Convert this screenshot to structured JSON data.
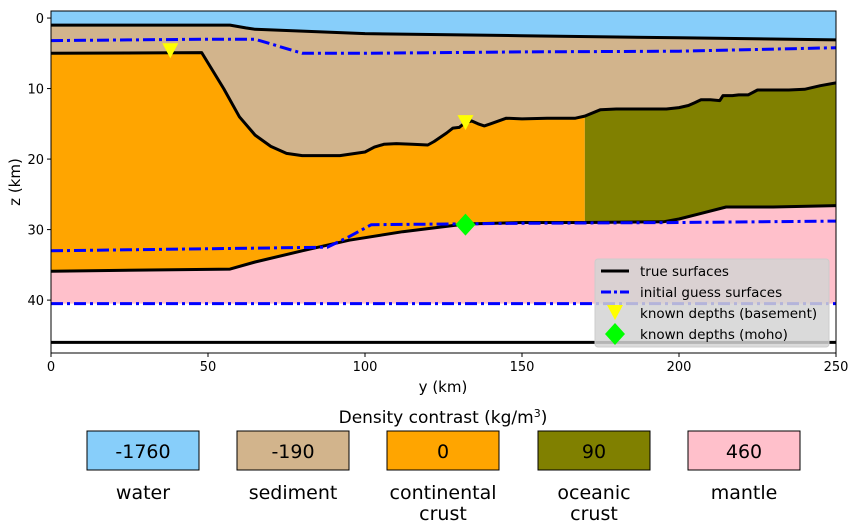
{
  "chart_data": {
    "type": "area",
    "xlabel": "y (km)",
    "ylabel": "z (km)",
    "xlim": [
      0,
      250
    ],
    "ylim": [
      47.5,
      -1
    ],
    "y_inverted": true,
    "x_ticks": [
      0,
      50,
      100,
      150,
      200,
      250
    ],
    "y_ticks": [
      0,
      10,
      20,
      30,
      40
    ],
    "grid": false,
    "legend_position": "lower-right",
    "layers": [
      {
        "name": "water",
        "density_contrast": -1760,
        "color": "#87CEFA"
      },
      {
        "name": "sediment",
        "density_contrast": -190,
        "color": "#D2B48C"
      },
      {
        "name": "continental crust",
        "density_contrast": 0,
        "color": "#FFA500"
      },
      {
        "name": "oceanic crust",
        "density_contrast": 90,
        "color": "#808000"
      },
      {
        "name": "mantle",
        "density_contrast": 460,
        "color": "#FFC0CB"
      }
    ],
    "true_surfaces": {
      "seafloor": {
        "x": [
          0,
          57,
          62,
          65,
          100,
          150,
          200,
          250
        ],
        "z": [
          1.0,
          1.0,
          1.4,
          1.6,
          2.2,
          2.5,
          2.8,
          3.1
        ]
      },
      "basement": {
        "x": [
          0,
          48,
          55,
          60,
          65,
          70,
          75,
          80,
          85,
          92,
          100,
          103,
          106,
          110,
          115,
          120,
          122,
          126,
          128,
          130,
          132,
          134,
          136,
          138,
          140,
          145,
          150,
          158,
          167,
          170,
          175,
          180,
          190,
          196,
          200,
          203,
          205,
          207,
          210,
          213,
          214,
          217,
          219,
          222,
          225,
          230,
          235,
          240,
          245,
          250
        ],
        "z": [
          5.0,
          4.9,
          10.0,
          14.0,
          16.6,
          18.2,
          19.2,
          19.5,
          19.5,
          19.5,
          19.0,
          18.3,
          17.9,
          17.8,
          17.9,
          18.0,
          17.5,
          16.3,
          15.6,
          15.5,
          14.8,
          14.6,
          15.0,
          15.3,
          15.0,
          14.2,
          14.3,
          14.2,
          14.2,
          13.9,
          13.0,
          12.9,
          12.9,
          12.9,
          12.7,
          12.4,
          12.0,
          11.6,
          11.6,
          11.7,
          11.0,
          11.0,
          10.9,
          10.9,
          10.2,
          10.2,
          10.2,
          10.1,
          9.6,
          9.2
        ]
      },
      "oceanic_crust_base": {
        "x": [
          170,
          195,
          200,
          207,
          215,
          230,
          250
        ],
        "z": [
          29.0,
          28.9,
          28.5,
          27.7,
          26.8,
          26.8,
          26.6
        ]
      },
      "moho": {
        "x": [
          0,
          57,
          65,
          80,
          95,
          112,
          132,
          150,
          170
        ],
        "z": [
          35.9,
          35.6,
          34.6,
          33.0,
          31.5,
          30.3,
          29.2,
          29.0,
          29.0
        ]
      },
      "model_bottom": {
        "x": [
          0,
          250
        ],
        "z": [
          46.0,
          46.0
        ]
      }
    },
    "initial_guess_surfaces": {
      "basement_top": {
        "x": [
          0,
          50,
          65,
          80,
          100,
          150,
          200,
          250
        ],
        "z": [
          3.2,
          3.0,
          3.0,
          5.0,
          5.0,
          4.8,
          4.7,
          4.2
        ]
      },
      "moho": {
        "x": [
          0,
          88,
          95,
          102,
          150,
          200,
          250
        ],
        "z": [
          33.0,
          32.5,
          31.0,
          29.3,
          29.1,
          29.0,
          28.8
        ]
      },
      "bottom": {
        "x": [
          0,
          250
        ],
        "z": [
          40.5,
          40.5
        ]
      }
    },
    "known_depths_basement": {
      "x": [
        38,
        132
      ],
      "z": [
        4.7,
        14.9
      ]
    },
    "known_depths_moho": {
      "x": [
        132
      ],
      "z": [
        29.3
      ]
    },
    "legend": [
      {
        "label": "true surfaces",
        "style": "black-solid"
      },
      {
        "label": "initial guess surfaces",
        "style": "blue-dashdot"
      },
      {
        "label": "known depths (basement)",
        "style": "yellow-triangle"
      },
      {
        "label": "known depths (moho)",
        "style": "green-diamond"
      }
    ],
    "colorbar_title": "Density contrast (kg/m³)",
    "colorbar_title_text": "Density contrast (kg/m",
    "colorbar_title_sup": "3",
    "colorbar_title_end": ")"
  },
  "colors": {
    "water": "#87CEFA",
    "sediment": "#D2B48C",
    "continental": "#FFA500",
    "oceanic": "#808000",
    "mantle": "#FFC0CB",
    "true_line": "#000000",
    "guess_line": "#0000FF",
    "basement_marker": "#FFFF00",
    "moho_marker": "#00FF00"
  },
  "colorbar_boxes": [
    {
      "value": "-1760",
      "name1": "water",
      "name2": "",
      "color": "#87CEFA"
    },
    {
      "value": "-190",
      "name1": "sediment",
      "name2": "",
      "color": "#D2B48C"
    },
    {
      "value": "0",
      "name1": "continental",
      "name2": "crust",
      "color": "#FFA500"
    },
    {
      "value": "90",
      "name1": "oceanic",
      "name2": "crust",
      "color": "#808000"
    },
    {
      "value": "460",
      "name1": "mantle",
      "name2": "",
      "color": "#FFC0CB"
    }
  ]
}
